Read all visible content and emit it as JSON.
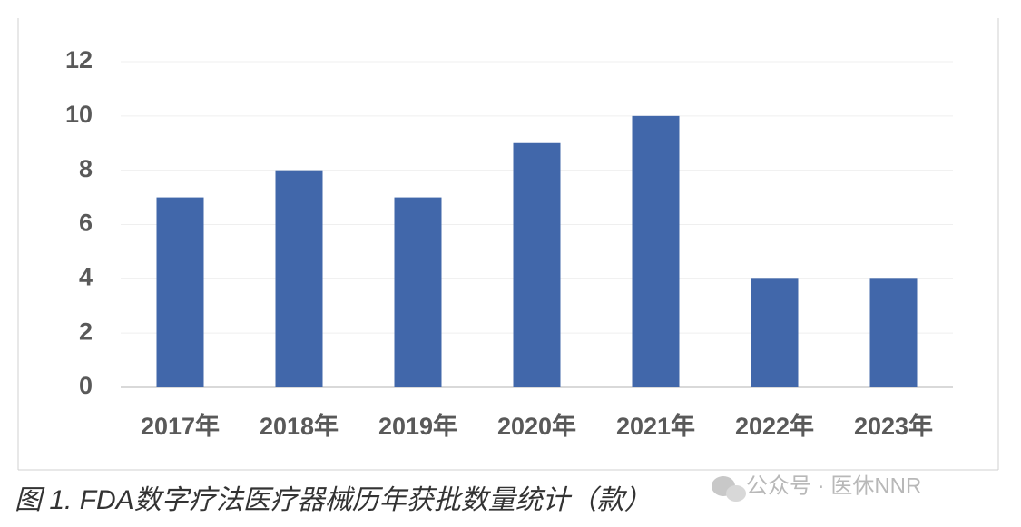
{
  "chart_data": {
    "type": "bar",
    "categories": [
      "2017年",
      "2018年",
      "2019年",
      "2020年",
      "2021年",
      "2022年",
      "2023年"
    ],
    "values": [
      7,
      8,
      7,
      9,
      10,
      4,
      4
    ],
    "color": "#4167aa",
    "ylim": [
      0,
      12
    ],
    "yticks": [
      0,
      2,
      4,
      6,
      8,
      10,
      12
    ],
    "grid": true
  },
  "caption": "图 1. FDA数字疗法医疗器械历年获批数量统计（款）",
  "watermark": "公众号 · 医休NNR"
}
